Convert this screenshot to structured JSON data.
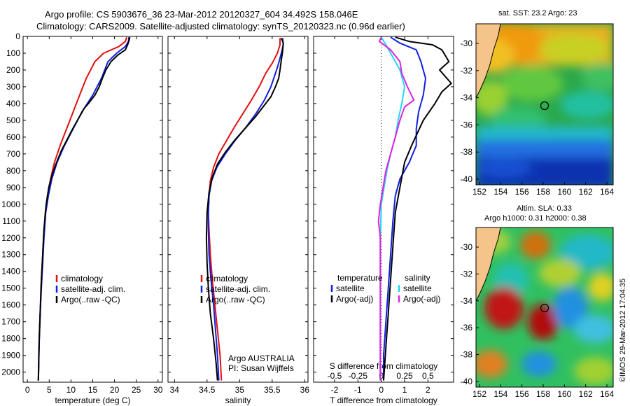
{
  "header": {
    "line1": "Argo profile: CS 5903676_36 23-Mar-2012 20120327_604 34.492S 158.046E",
    "line2": "Climatology: CARS2009. Satellite-adjusted climatology: synTS_20120323.nc (0.96d earlier)"
  },
  "colors": {
    "climatology": "#e01010",
    "satellite": "#1020e0",
    "argo": "#000000",
    "sat_salinity": "#20d8f0",
    "argo_salinity": "#e020e0",
    "land": "#f5c48a"
  },
  "chart_data": [
    {
      "type": "line",
      "xlabel": "temperature (deg C)",
      "xticks": [
        0,
        5,
        10,
        15,
        20,
        25,
        30
      ],
      "xlim": [
        -1,
        31
      ],
      "ylim": [
        2060,
        0
      ],
      "yticks": [
        0,
        100,
        200,
        300,
        400,
        500,
        600,
        700,
        800,
        900,
        1000,
        1100,
        1200,
        1300,
        1400,
        1500,
        1600,
        1700,
        1800,
        1900,
        2000
      ],
      "legend": [
        "climatology",
        "satellite-adj. clim.",
        "Argo(..raw -QC)"
      ],
      "series": [
        {
          "name": "climatology",
          "color": "#e01010",
          "points": [
            [
              22.8,
              5
            ],
            [
              22.5,
              30
            ],
            [
              21,
              60
            ],
            [
              17.5,
              100
            ],
            [
              15.5,
              150
            ],
            [
              13.5,
              250
            ],
            [
              12,
              350
            ],
            [
              10.5,
              450
            ],
            [
              9,
              550
            ],
            [
              7.5,
              650
            ],
            [
              6.2,
              750
            ],
            [
              5.3,
              850
            ],
            [
              4.6,
              950
            ],
            [
              4.1,
              1050
            ],
            [
              3.7,
              1200
            ],
            [
              3.4,
              1350
            ],
            [
              3.1,
              1500
            ],
            [
              2.9,
              1650
            ],
            [
              2.7,
              1800
            ],
            [
              2.6,
              1950
            ],
            [
              2.5,
              2050
            ]
          ]
        },
        {
          "name": "satellite-adj. clim.",
          "color": "#1020e0",
          "points": [
            [
              23.3,
              5
            ],
            [
              23.2,
              30
            ],
            [
              22.5,
              60
            ],
            [
              20.5,
              100
            ],
            [
              18.5,
              150
            ],
            [
              17,
              250
            ],
            [
              15,
              350
            ],
            [
              12.5,
              450
            ],
            [
              10.5,
              550
            ],
            [
              8.5,
              650
            ],
            [
              6.8,
              750
            ],
            [
              5.6,
              850
            ],
            [
              4.8,
              950
            ],
            [
              4.2,
              1050
            ],
            [
              3.8,
              1200
            ],
            [
              3.5,
              1350
            ],
            [
              3.2,
              1500
            ],
            [
              2.9,
              1650
            ],
            [
              2.7,
              1800
            ],
            [
              2.6,
              1950
            ],
            [
              2.5,
              2050
            ]
          ]
        },
        {
          "name": "Argo(..raw -QC)",
          "color": "#000000",
          "points": [
            [
              23.5,
              5
            ],
            [
              23.4,
              20
            ],
            [
              23,
              50
            ],
            [
              22.5,
              80
            ],
            [
              20.8,
              110
            ],
            [
              19.2,
              150
            ],
            [
              18,
              200
            ],
            [
              17.2,
              250
            ],
            [
              16.5,
              300
            ],
            [
              15.5,
              350
            ],
            [
              14,
              400
            ],
            [
              13,
              430
            ],
            [
              11.5,
              500
            ],
            [
              10.2,
              560
            ],
            [
              9,
              620
            ],
            [
              7.8,
              680
            ],
            [
              6.7,
              750
            ],
            [
              5.7,
              820
            ],
            [
              4.9,
              900
            ],
            [
              4.3,
              1000
            ],
            [
              3.8,
              1150
            ],
            [
              3.5,
              1300
            ],
            [
              3.2,
              1450
            ],
            [
              3,
              1600
            ],
            [
              2.8,
              1750
            ],
            [
              2.6,
              1900
            ],
            [
              2.5,
              2050
            ]
          ]
        }
      ]
    },
    {
      "type": "line",
      "xlabel": "salinity",
      "xticks": [
        34,
        34.5,
        35,
        35.5,
        36
      ],
      "xlim": [
        33.9,
        36.05
      ],
      "ylim": [
        2060,
        0
      ],
      "legend": [
        "climatology",
        "satellite-adj. clim.",
        "Argo(..raw -QC)"
      ],
      "annotation": [
        "Argo AUSTRALIA",
        "PI: Susan Wijffels"
      ],
      "series": [
        {
          "name": "climatology",
          "color": "#e01010",
          "points": [
            [
              35.62,
              10
            ],
            [
              35.62,
              50
            ],
            [
              35.58,
              100
            ],
            [
              35.5,
              160
            ],
            [
              35.4,
              220
            ],
            [
              35.3,
              300
            ],
            [
              35.18,
              380
            ],
            [
              35.05,
              460
            ],
            [
              34.92,
              540
            ],
            [
              34.8,
              620
            ],
            [
              34.68,
              700
            ],
            [
              34.6,
              780
            ],
            [
              34.55,
              860
            ],
            [
              34.53,
              950
            ],
            [
              34.52,
              1050
            ],
            [
              34.53,
              1150
            ],
            [
              34.55,
              1300
            ],
            [
              34.58,
              1450
            ],
            [
              34.62,
              1600
            ],
            [
              34.66,
              1750
            ],
            [
              34.7,
              1900
            ],
            [
              34.72,
              2050
            ]
          ]
        },
        {
          "name": "satellite-adj. clim.",
          "color": "#1020e0",
          "points": [
            [
              35.66,
              10
            ],
            [
              35.67,
              50
            ],
            [
              35.64,
              100
            ],
            [
              35.6,
              160
            ],
            [
              35.55,
              220
            ],
            [
              35.48,
              300
            ],
            [
              35.38,
              380
            ],
            [
              35.25,
              460
            ],
            [
              35.1,
              540
            ],
            [
              34.93,
              620
            ],
            [
              34.78,
              700
            ],
            [
              34.65,
              780
            ],
            [
              34.57,
              860
            ],
            [
              34.53,
              950
            ],
            [
              34.52,
              1050
            ],
            [
              34.52,
              1150
            ],
            [
              34.53,
              1300
            ],
            [
              34.56,
              1450
            ],
            [
              34.6,
              1600
            ],
            [
              34.63,
              1750
            ],
            [
              34.66,
              1900
            ],
            [
              34.68,
              2050
            ]
          ]
        },
        {
          "name": "Argo(..raw -QC)",
          "color": "#000000",
          "points": [
            [
              35.64,
              10
            ],
            [
              35.67,
              40
            ],
            [
              35.66,
              90
            ],
            [
              35.64,
              140
            ],
            [
              35.62,
              200
            ],
            [
              35.6,
              250
            ],
            [
              35.55,
              300
            ],
            [
              35.48,
              360
            ],
            [
              35.36,
              420
            ],
            [
              35.24,
              480
            ],
            [
              35.08,
              550
            ],
            [
              34.92,
              620
            ],
            [
              34.78,
              690
            ],
            [
              34.66,
              760
            ],
            [
              34.58,
              840
            ],
            [
              34.53,
              930
            ],
            [
              34.5,
              1050
            ],
            [
              34.49,
              1200
            ],
            [
              34.5,
              1350
            ],
            [
              34.52,
              1500
            ],
            [
              34.55,
              1650
            ],
            [
              34.6,
              1800
            ],
            [
              34.64,
              1950
            ],
            [
              34.66,
              2050
            ]
          ]
        }
      ]
    },
    {
      "type": "line",
      "xlabel": "T difference from climatology",
      "xticks": [
        -2,
        -1,
        0,
        1,
        2
      ],
      "xlim": [
        -2.9,
        3.1
      ],
      "top_axis_label": "S difference from climatology",
      "top_ticks": [
        -0.5,
        -0.25,
        0,
        0.25,
        0.5
      ],
      "ylim": [
        2060,
        0
      ],
      "legend_groups": [
        {
          "title": "temperature",
          "items": [
            "satellite",
            "Argo(-adj)"
          ]
        },
        {
          "title": "salinity",
          "items": [
            "satellite",
            "Argo(-adj)"
          ]
        }
      ],
      "series": [
        {
          "name": "satellite",
          "group": "temperature",
          "color": "#1020e0",
          "points": [
            [
              0.4,
              5
            ],
            [
              0.8,
              40
            ],
            [
              1.5,
              80
            ],
            [
              1.7,
              150
            ],
            [
              1.9,
              250
            ],
            [
              1.8,
              350
            ],
            [
              1.6,
              450
            ],
            [
              1.5,
              550
            ],
            [
              1.5,
              650
            ],
            [
              1.2,
              750
            ],
            [
              0.8,
              850
            ],
            [
              0.6,
              950
            ],
            [
              0.5,
              1100
            ],
            [
              0.4,
              1300
            ],
            [
              0.3,
              1500
            ],
            [
              0.2,
              1700
            ],
            [
              0.1,
              1900
            ],
            [
              0.1,
              2050
            ]
          ]
        },
        {
          "name": "Argo(-adj)",
          "group": "temperature",
          "color": "#000000",
          "points": [
            [
              0.6,
              5
            ],
            [
              1.2,
              30
            ],
            [
              2.2,
              50
            ],
            [
              2.6,
              80
            ],
            [
              2.9,
              150
            ],
            [
              2.5,
              200
            ],
            [
              3.0,
              280
            ],
            [
              2.6,
              330
            ],
            [
              2.3,
              400
            ],
            [
              1.8,
              500
            ],
            [
              1.6,
              560
            ],
            [
              1.3,
              650
            ],
            [
              1.0,
              750
            ],
            [
              0.8,
              900
            ],
            [
              0.6,
              1050
            ],
            [
              0.5,
              1250
            ],
            [
              0.4,
              1450
            ],
            [
              0.3,
              1650
            ],
            [
              0.2,
              1850
            ],
            [
              0.1,
              2050
            ]
          ]
        },
        {
          "name": "satellite",
          "group": "salinity",
          "color": "#20d8f0",
          "points": [
            [
              0.0,
              5
            ],
            [
              0.05,
              50
            ],
            [
              0.12,
              120
            ],
            [
              0.2,
              200
            ],
            [
              0.25,
              300
            ],
            [
              0.22,
              400
            ],
            [
              0.18,
              500
            ],
            [
              0.15,
              600
            ],
            [
              0.1,
              700
            ],
            [
              0.06,
              800
            ],
            [
              0.03,
              900
            ],
            [
              0.0,
              1000
            ],
            [
              -0.01,
              1200
            ],
            [
              -0.01,
              1400
            ],
            [
              -0.01,
              1600
            ],
            [
              -0.01,
              1800
            ],
            [
              -0.01,
              2050
            ]
          ]
        },
        {
          "name": "Argo(-adj)",
          "group": "salinity",
          "color": "#e020e0",
          "points": [
            [
              0.0,
              5
            ],
            [
              -0.02,
              30
            ],
            [
              0.1,
              80
            ],
            [
              0.2,
              150
            ],
            [
              0.22,
              220
            ],
            [
              0.28,
              300
            ],
            [
              0.35,
              380
            ],
            [
              0.25,
              420
            ],
            [
              0.2,
              500
            ],
            [
              0.15,
              600
            ],
            [
              0.1,
              700
            ],
            [
              0.05,
              800
            ],
            [
              0.02,
              900
            ],
            [
              -0.01,
              1000
            ],
            [
              -0.03,
              1100
            ],
            [
              -0.01,
              1200
            ],
            [
              -0.01,
              1400
            ],
            [
              -0.01,
              1600
            ],
            [
              -0.01,
              1800
            ],
            [
              -0.01,
              2050
            ]
          ]
        }
      ]
    }
  ],
  "maps": {
    "sst": {
      "title": "sat. SST: 23.2  Argo: 23",
      "xticks": [
        "152",
        "154",
        "156",
        "158",
        "160",
        "162",
        "164"
      ],
      "yticks": [
        "-30",
        "-32",
        "-34",
        "-36",
        "-38",
        "-40"
      ]
    },
    "sla": {
      "title1": "Altim. SLA: 0.33",
      "title2": "Argo h1000: 0.31  h2000: 0.38",
      "xticks": [
        "152",
        "154",
        "156",
        "158",
        "160",
        "162",
        "164"
      ],
      "yticks": [
        "-30",
        "-32",
        "-34",
        "-36",
        "-38",
        "-40"
      ]
    }
  },
  "credit": "©IMOS 29-Mar-2012 17:04:35"
}
